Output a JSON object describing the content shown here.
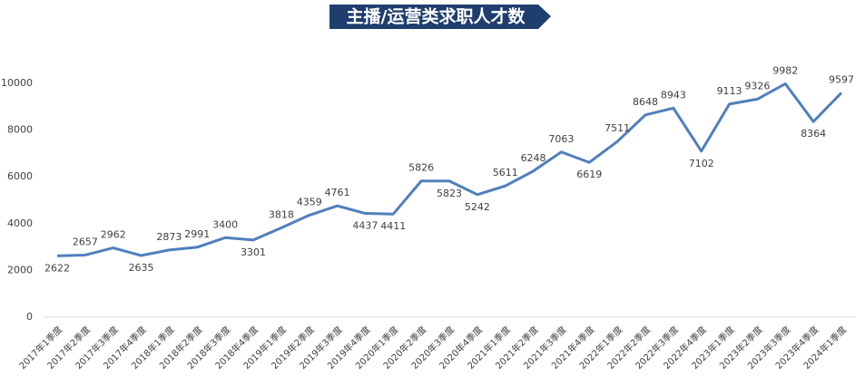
{
  "chart_data": {
    "type": "line",
    "title": "主播/运营类求职人才数",
    "categories": [
      "2017年1季度",
      "2017年2季度",
      "2017年3季度",
      "2017年4季度",
      "2018年1季度",
      "2018年2季度",
      "2018年3季度",
      "2018年4季度",
      "2019年1季度",
      "2019年2季度",
      "2019年3季度",
      "2019年4季度",
      "2020年1季度",
      "2020年2季度",
      "2020年3季度",
      "2020年4季度",
      "2021年1季度",
      "2021年2季度",
      "2021年3季度",
      "2021年4季度",
      "2022年1季度",
      "2022年2季度",
      "2022年3季度",
      "2022年4季度",
      "2023年1季度",
      "2023年2季度",
      "2023年3季度",
      "2023年4季度",
      "2024年1季度"
    ],
    "values": [
      2622,
      2657,
      2962,
      2635,
      2873,
      2991,
      3400,
      3301,
      3818,
      4359,
      4761,
      4437,
      4411,
      5826,
      5823,
      5242,
      5611,
      6248,
      7063,
      6619,
      7511,
      8648,
      8943,
      7102,
      9113,
      9326,
      9982,
      8364,
      9597
    ],
    "color": "#4f7fbd",
    "ylim": [
      0,
      10000
    ],
    "yticks": [
      0,
      2000,
      4000,
      6000,
      8000,
      10000
    ],
    "grid": false
  }
}
